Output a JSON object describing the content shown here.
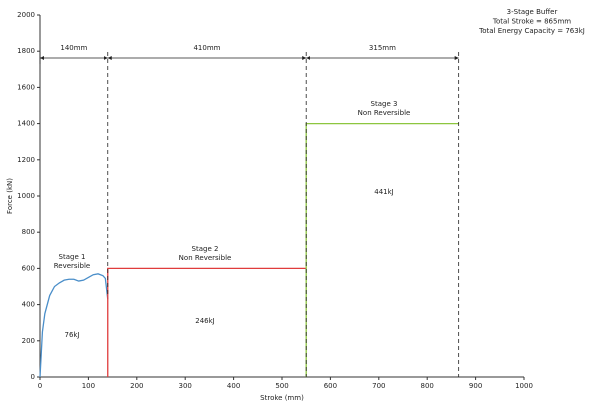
{
  "chart_data": {
    "type": "line",
    "xlabel": "Stroke (mm)",
    "ylabel": "Force (kN)",
    "xlim": [
      0,
      1000
    ],
    "ylim": [
      0,
      2000
    ],
    "xticks": [
      0,
      100,
      200,
      300,
      400,
      500,
      600,
      700,
      800,
      900,
      1000
    ],
    "yticks": [
      0,
      200,
      400,
      600,
      800,
      1000,
      1200,
      1400,
      1600,
      1800,
      2000
    ],
    "grid": false,
    "series": [
      {
        "color": "#4a8ec9",
        "x": [
          0,
          5,
          10,
          20,
          30,
          40,
          50,
          60,
          70,
          80,
          90,
          100,
          110,
          120,
          130,
          135,
          140
        ],
        "values": [
          0,
          250,
          350,
          450,
          500,
          520,
          535,
          540,
          540,
          530,
          535,
          550,
          565,
          570,
          560,
          545,
          430
        ]
      },
      {
        "color": "#e03c3c",
        "x": [
          140,
          140,
          550
        ],
        "values": [
          0,
          600,
          600
        ]
      },
      {
        "color": "#8dc63f",
        "x": [
          550,
          550,
          865
        ],
        "values": [
          0,
          1400,
          1400
        ]
      }
    ],
    "spans": [
      {
        "label": "140mm",
        "start": 0,
        "end": 140
      },
      {
        "label": "410mm",
        "start": 140,
        "end": 550
      },
      {
        "label": "315mm",
        "start": 550,
        "end": 865
      }
    ],
    "annotations": [
      "Stage 1",
      "Reversible",
      "76kJ",
      "Stage 2",
      "Non Reversible",
      "246kJ",
      "Stage 3",
      "Non Reversible",
      "441kJ"
    ],
    "notes": [
      "3-Stage Buffer",
      "Total Stroke = 865mm",
      "Total Energy Capacity = 763kJ"
    ]
  }
}
